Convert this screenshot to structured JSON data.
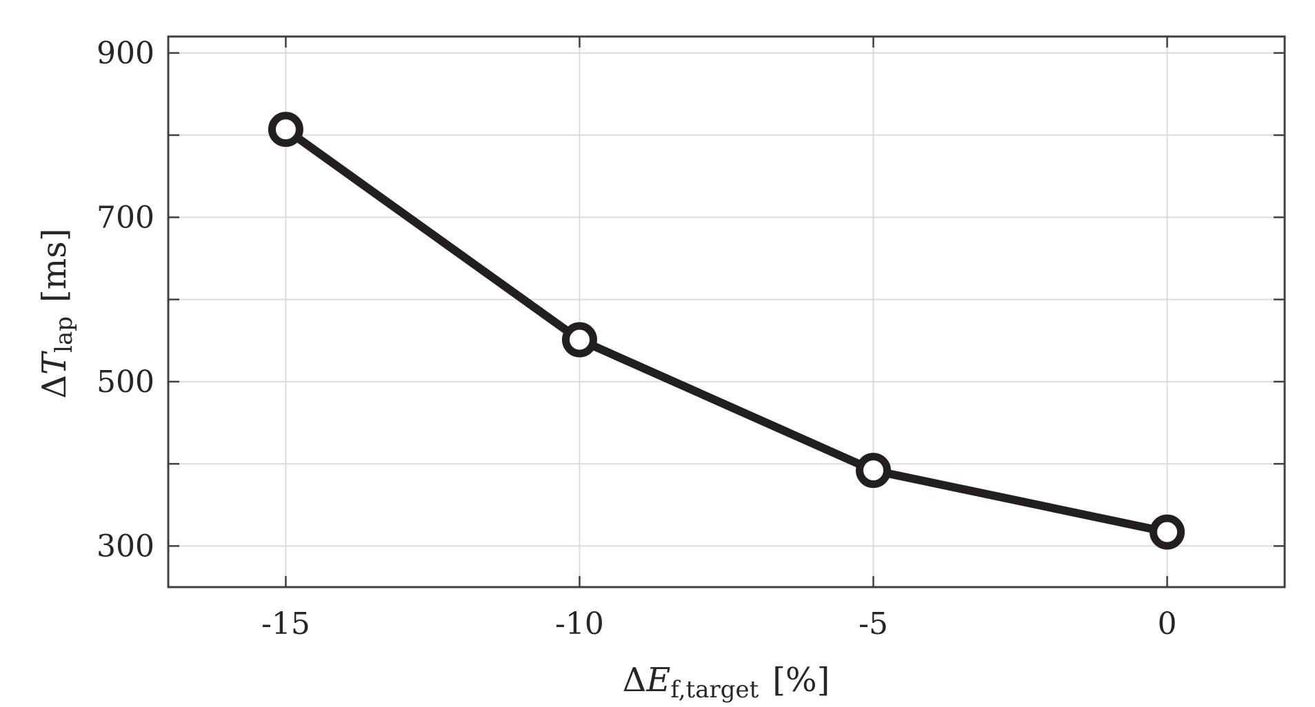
{
  "chart_data": {
    "type": "line",
    "x": [
      -15,
      -10,
      -5,
      0
    ],
    "series": [
      {
        "values": [
          807,
          551,
          392,
          317
        ],
        "color": "#231f20",
        "marker": "circle"
      }
    ],
    "xlim": [
      -17,
      2
    ],
    "ylim": [
      250,
      920
    ],
    "xticks": [
      -15,
      -10,
      -5,
      0
    ],
    "xtick_labels": [
      "-15",
      "-10",
      "-5",
      "0"
    ],
    "yticks": [
      300,
      400,
      500,
      600,
      700,
      800,
      900
    ],
    "ytick_labels": [
      "300",
      "",
      "500",
      "",
      "700",
      "",
      "900"
    ],
    "xlabel": {
      "delta": "Δ",
      "symbol": "E",
      "subscript": "f,target",
      "unit": "[%]"
    },
    "ylabel": {
      "delta": "Δ",
      "symbol": "T",
      "subscript": "lap",
      "unit": "[ms]"
    },
    "grid": true,
    "colors": {
      "axes": "#404040",
      "grid": "#dcdcdc",
      "text": "#262626"
    }
  }
}
